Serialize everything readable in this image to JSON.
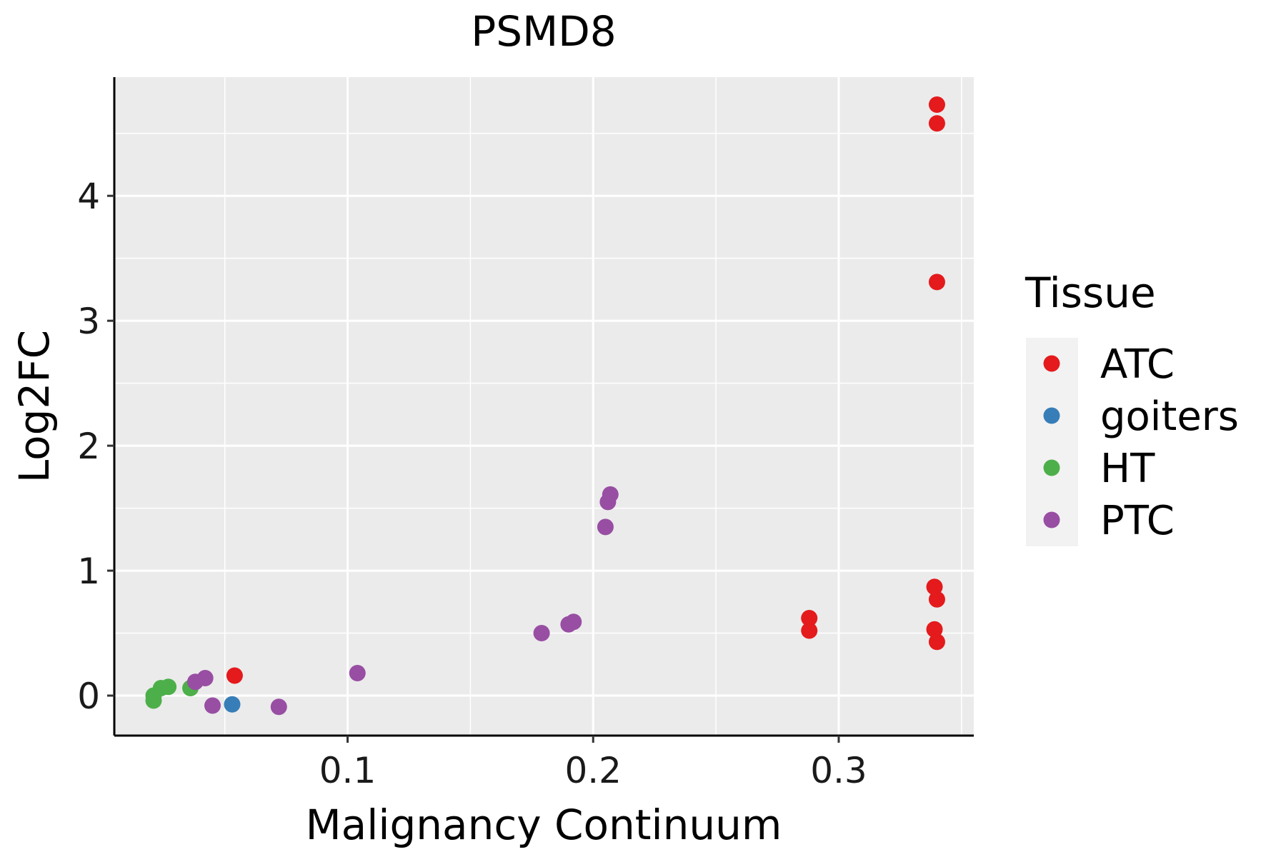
{
  "chart_data": {
    "type": "scatter",
    "title": "PSMD8",
    "xlabel": "Malignancy Continuum",
    "ylabel": "Log2FC",
    "xlim": [
      0.005,
      0.355
    ],
    "ylim": [
      -0.32,
      4.95
    ],
    "xticks": [
      0.1,
      0.2,
      0.3
    ],
    "xtick_labels": [
      "0.1",
      "0.2",
      "0.3"
    ],
    "yticks": [
      0,
      1,
      2,
      3,
      4
    ],
    "ytick_labels": [
      "0",
      "1",
      "2",
      "3",
      "4"
    ],
    "grid": true,
    "legend": {
      "title": "Tissue",
      "position": "right"
    },
    "series": [
      {
        "name": "ATC",
        "color": "#e41a1c",
        "points": [
          [
            0.34,
            4.73
          ],
          [
            0.34,
            4.58
          ],
          [
            0.34,
            3.31
          ],
          [
            0.339,
            0.87
          ],
          [
            0.34,
            0.77
          ],
          [
            0.339,
            0.53
          ],
          [
            0.34,
            0.43
          ],
          [
            0.288,
            0.62
          ],
          [
            0.288,
            0.52
          ],
          [
            0.054,
            0.16
          ]
        ]
      },
      {
        "name": "goiters",
        "color": "#377eb8",
        "points": [
          [
            0.053,
            -0.07
          ]
        ]
      },
      {
        "name": "HT",
        "color": "#4daf4a",
        "points": [
          [
            0.021,
            0.0
          ],
          [
            0.021,
            -0.04
          ],
          [
            0.024,
            0.06
          ],
          [
            0.027,
            0.07
          ],
          [
            0.036,
            0.06
          ]
        ]
      },
      {
        "name": "PTC",
        "color": "#984ea3",
        "points": [
          [
            0.207,
            1.61
          ],
          [
            0.206,
            1.55
          ],
          [
            0.205,
            1.35
          ],
          [
            0.192,
            0.59
          ],
          [
            0.19,
            0.57
          ],
          [
            0.179,
            0.5
          ],
          [
            0.104,
            0.18
          ],
          [
            0.038,
            0.11
          ],
          [
            0.042,
            0.14
          ],
          [
            0.045,
            -0.08
          ],
          [
            0.072,
            -0.09
          ]
        ]
      }
    ]
  }
}
